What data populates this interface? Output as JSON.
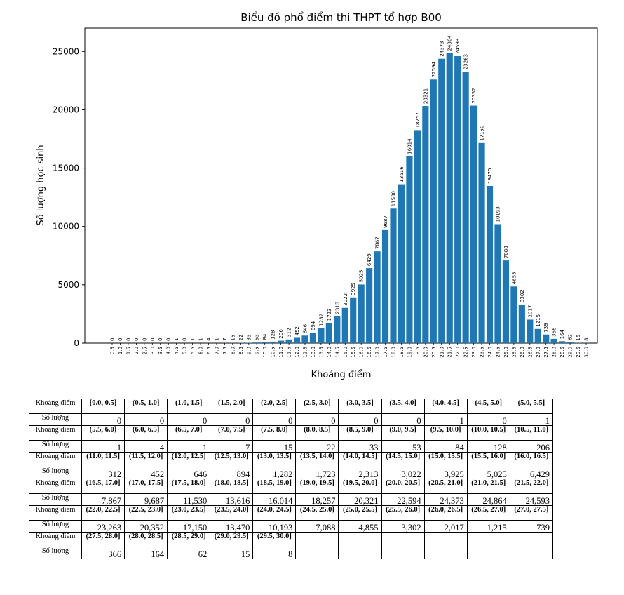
{
  "chart_data": {
    "type": "bar",
    "title": "Biểu đồ phổ điểm thi THPT tổ hợp B00",
    "xlabel": "Khoảng điểm",
    "ylabel": "Số lượng học sinh",
    "ylim": [
      0,
      27000
    ],
    "yticks": [
      "0",
      "5000",
      "10000",
      "15000",
      "20000",
      "25000"
    ],
    "bar_color": "#1f77b4",
    "categories": [
      "0.5",
      "1.0",
      "1.5",
      "2.0",
      "2.5",
      "3.0",
      "3.5",
      "4.0",
      "4.5",
      "5.0",
      "5.5",
      "6.0",
      "6.5",
      "7.0",
      "7.5",
      "8.0",
      "8.5",
      "9.0",
      "9.5",
      "10.0",
      "10.5",
      "11.0",
      "11.5",
      "12.0",
      "12.5",
      "13.0",
      "13.5",
      "14.0",
      "14.5",
      "15.0",
      "15.5",
      "16.0",
      "16.5",
      "17.0",
      "17.5",
      "18.0",
      "18.5",
      "19.0",
      "19.5",
      "20.0",
      "20.5",
      "21.0",
      "21.5",
      "22.0",
      "22.5",
      "23.0",
      "23.5",
      "24.0",
      "24.5",
      "25.0",
      "25.5",
      "26.0",
      "26.5",
      "27.0",
      "27.5",
      "28.0",
      "28.5",
      "29.0",
      "29.5",
      "30.0"
    ],
    "values": [
      0,
      0,
      0,
      0,
      0,
      0,
      0,
      0,
      1,
      0,
      1,
      1,
      4,
      1,
      7,
      15,
      22,
      33,
      53,
      84,
      128,
      206,
      312,
      452,
      646,
      894,
      1282,
      1723,
      2313,
      3022,
      3925,
      5025,
      6429,
      7867,
      9687,
      11530,
      13616,
      16014,
      18257,
      20321,
      22594,
      24373,
      24864,
      24593,
      23263,
      20352,
      17150,
      13470,
      10193,
      7088,
      4855,
      3302,
      2017,
      1215,
      739,
      366,
      164,
      62,
      15,
      8
    ]
  },
  "table": {
    "row_label_range": "Khoảng điểm",
    "row_label_count": "Số lượng",
    "blocks": [
      {
        "ranges": [
          "[0.0, 0.5]",
          "(0.5, 1.0]",
          "(1.0, 1.5]",
          "(1.5, 2.0]",
          "(2.0, 2.5]",
          "(2.5, 3.0]",
          "(3.0, 3.5]",
          "(3.5, 4.0]",
          "(4.0, 4.5]",
          "(4.5, 5.0]",
          "(5.0, 5.5]"
        ],
        "counts": [
          "0",
          "0",
          "0",
          "0",
          "0",
          "0",
          "0",
          "0",
          "1",
          "0",
          "1"
        ]
      },
      {
        "ranges": [
          "(5.5, 6.0]",
          "(6.0, 6.5]",
          "(6.5, 7.0]",
          "(7.0, 7.5]",
          "(7.5, 8.0]",
          "(8.0, 8.5]",
          "(8.5, 9.0]",
          "(9.0, 9.5]",
          "(9.5, 10.0]",
          "(10.0, 10.5]",
          "(10.5, 11.0]"
        ],
        "counts": [
          "1",
          "4",
          "1",
          "7",
          "15",
          "22",
          "33",
          "53",
          "84",
          "128",
          "206"
        ]
      },
      {
        "ranges": [
          "(11.0, 11.5]",
          "(11.5, 12.0]",
          "(12.0, 12.5]",
          "(12.5, 13.0]",
          "(13.0, 13.5]",
          "(13.5, 14.0]",
          "(14.0, 14.5]",
          "(14.5, 15.0]",
          "(15.0, 15.5]",
          "(15.5, 16.0]",
          "(16.0, 16.5]"
        ],
        "counts": [
          "312",
          "452",
          "646",
          "894",
          "1,282",
          "1,723",
          "2,313",
          "3,022",
          "3,925",
          "5,025",
          "6,429"
        ]
      },
      {
        "ranges": [
          "(16.5, 17.0]",
          "(17.0, 17.5]",
          "(17.5, 18.0]",
          "(18.0, 18.5]",
          "(18.5, 19.0]",
          "(19.0, 19.5]",
          "(19.5, 20.0]",
          "(20.0, 20.5]",
          "(20.5, 21.0]",
          "(21.0, 21.5]",
          "(21.5, 22.0]"
        ],
        "counts": [
          "7,867",
          "9,687",
          "11,530",
          "13,616",
          "16,014",
          "18,257",
          "20,321",
          "22,594",
          "24,373",
          "24,864",
          "24,593"
        ]
      },
      {
        "ranges": [
          "(22.0, 22.5]",
          "(22.5, 23.0]",
          "(23.0, 23.5]",
          "(23.5, 24.0]",
          "(24.0, 24.5]",
          "(24.5, 25.0]",
          "(25.0, 25.5]",
          "(25.5, 26.0]",
          "(26.0, 26.5]",
          "(26.5, 27.0]",
          "(27.0, 27.5]"
        ],
        "counts": [
          "23,263",
          "20,352",
          "17,150",
          "13,470",
          "10,193",
          "7,088",
          "4,855",
          "3,302",
          "2,017",
          "1,215",
          "739"
        ]
      },
      {
        "ranges": [
          "(27.5, 28.0]",
          "(28.0, 28.5]",
          "(28.5, 29.0]",
          "(29.0, 29.5]",
          "(29.5, 30.0]",
          "",
          "",
          "",
          "",
          "",
          ""
        ],
        "counts": [
          "366",
          "164",
          "62",
          "15",
          "8",
          "",
          "",
          "",
          "",
          "",
          ""
        ]
      }
    ]
  }
}
